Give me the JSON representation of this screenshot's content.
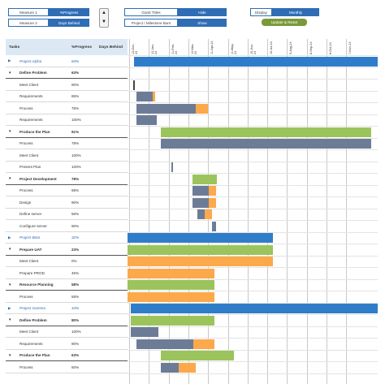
{
  "controls": {
    "measures": [
      {
        "label": "Measure 1",
        "value": "%Progress"
      },
      {
        "label": "Measure 2",
        "value": "Days Behind"
      }
    ],
    "spin_up": "▲",
    "spin_down": "▼",
    "gantt_title": {
      "label": "Gantt Titles",
      "value": "Hide"
    },
    "project_milestone": {
      "label": "Project / Milestone Bars",
      "value": "Show"
    },
    "display": {
      "label": "Display",
      "value": "Monthly"
    },
    "update_reset": "Update & Reset"
  },
  "header": {
    "tasks": "Tasks",
    "progress": "%Progress",
    "behind": "Days Behind"
  },
  "dates": [
    "12-Dec-23",
    "12-Jan-24",
    "11-Feb-24",
    "12-Mar-24",
    "11-Apr-24",
    "11-May-24",
    "10-Jun-24",
    "10-Jul-24",
    "9-Aug-24",
    "8-Sep-24",
    "8-Oct-24",
    "7-Nov-24"
  ],
  "colors": {
    "project": "#2f7dc9",
    "plan": "#9cc45c",
    "actual": "#6d7c96",
    "behind": "#fba94a"
  },
  "rows": [
    {
      "caret": "▶",
      "name": "Project Alpha",
      "pct": "84%",
      "type": "proj"
    },
    {
      "caret": "▼",
      "name": "Define Problem",
      "pct": "63%",
      "type": "bold"
    },
    {
      "caret": "",
      "name": "Meet Client",
      "pct": "90%",
      "type": "task"
    },
    {
      "caret": "",
      "name": "Requirements",
      "pct": "85%",
      "type": "task"
    },
    {
      "caret": "",
      "name": "Process",
      "pct": "78%",
      "type": "task"
    },
    {
      "caret": "",
      "name": "Requirements",
      "pct": "100%",
      "type": "task"
    },
    {
      "caret": "▼",
      "name": "Produce the Plan",
      "pct": "91%",
      "type": "bold"
    },
    {
      "caret": "",
      "name": "Process",
      "pct": "78%",
      "type": "task"
    },
    {
      "caret": "",
      "name": "Meet Client",
      "pct": "100%",
      "type": "task"
    },
    {
      "caret": "",
      "name": "Present Plan",
      "pct": "100%",
      "type": "task"
    },
    {
      "caret": "▼",
      "name": "Project Development",
      "pct": "78%",
      "type": "bold"
    },
    {
      "caret": "",
      "name": "Process",
      "pct": "68%",
      "type": "task"
    },
    {
      "caret": "",
      "name": "Design",
      "pct": "90%",
      "type": "task"
    },
    {
      "caret": "",
      "name": "Define server",
      "pct": "56%",
      "type": "task"
    },
    {
      "caret": "",
      "name": "Configure server",
      "pct": "90%",
      "type": "task"
    },
    {
      "caret": "▶",
      "name": "Project Beta",
      "pct": "32%",
      "type": "proj"
    },
    {
      "caret": "▼",
      "name": "Prepare UAT",
      "pct": "23%",
      "type": "bold"
    },
    {
      "caret": "",
      "name": "Meet Client",
      "pct": "0%",
      "type": "task"
    },
    {
      "caret": "",
      "name": "Prepare PROD",
      "pct": "45%",
      "type": "task"
    },
    {
      "caret": "▼",
      "name": "Resource Planning",
      "pct": "58%",
      "type": "bold"
    },
    {
      "caret": "",
      "name": "Process",
      "pct": "58%",
      "type": "task"
    },
    {
      "caret": "▶",
      "name": "Project Gamma",
      "pct": "44%",
      "type": "proj"
    },
    {
      "caret": "▼",
      "name": "Define Problem",
      "pct": "80%",
      "type": "bold"
    },
    {
      "caret": "",
      "name": "Meet Client",
      "pct": "100%",
      "type": "task"
    },
    {
      "caret": "",
      "name": "Requirements",
      "pct": "90%",
      "type": "task"
    },
    {
      "caret": "▼",
      "name": "Produce the Plan",
      "pct": "63%",
      "type": "bold"
    },
    {
      "caret": "",
      "name": "Process",
      "pct": "50%",
      "type": "task"
    }
  ]
}
